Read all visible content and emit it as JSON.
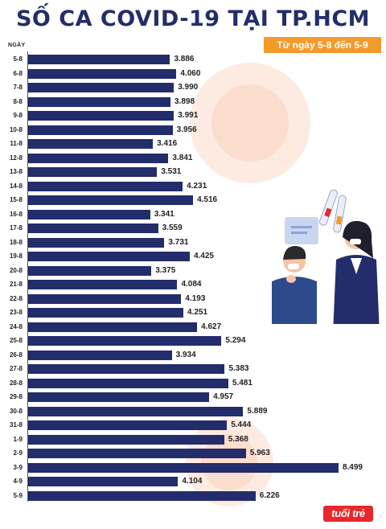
{
  "header": {
    "title": "SỐ CA COVID-19 TẠI TP.HCM",
    "date_range": "Từ ngày 5-8 đến 5-9",
    "axis_unit": "NGÀY"
  },
  "logo": {
    "text": "tuổi trẻ"
  },
  "colors": {
    "bar": "#232d6b",
    "title": "#232d6b",
    "badge": "#f39a2b",
    "logo": "#e8282d"
  },
  "chart_data": {
    "type": "bar",
    "orientation": "horizontal",
    "title": "SỐ CA COVID-19 TẠI TP.HCM",
    "subtitle": "Từ ngày 5-8 đến 5-9",
    "ylabel": "NGÀY",
    "xlabel": "",
    "grid": false,
    "legend": "none",
    "xlim": [
      0,
      8500
    ],
    "categories": [
      "5-8",
      "6-8",
      "7-8",
      "8-8",
      "9-8",
      "10-8",
      "11-8",
      "12-8",
      "13-8",
      "14-8",
      "15-8",
      "16-8",
      "17-8",
      "18-8",
      "19-8",
      "20-8",
      "21-8",
      "22-8",
      "23-8",
      "24-8",
      "25-8",
      "26-8",
      "27-8",
      "28-8",
      "29-8",
      "30-8",
      "31-8",
      "1-9",
      "2-9",
      "3-9",
      "4-9",
      "5-9"
    ],
    "values": [
      3886,
      4060,
      3990,
      3898,
      3991,
      3956,
      3416,
      3841,
      3531,
      4231,
      4516,
      3341,
      3559,
      3731,
      4425,
      3375,
      4084,
      4193,
      4251,
      4627,
      5294,
      3934,
      5383,
      5481,
      4957,
      5889,
      5444,
      5368,
      5963,
      8499,
      4104,
      6226
    ],
    "value_labels": [
      "3.886",
      "4.060",
      "3.990",
      "3.898",
      "3.991",
      "3.956",
      "3.416",
      "3.841",
      "3.531",
      "4.231",
      "4.516",
      "3.341",
      "3.559",
      "3.731",
      "4.425",
      "3.375",
      "4.084",
      "4.193",
      "4.251",
      "4.627",
      "5.294",
      "3.934",
      "5.383",
      "5.481",
      "4.957",
      "5.889",
      "5.444",
      "5.368",
      "5.963",
      "8.499",
      "4.104",
      "6.226"
    ]
  }
}
